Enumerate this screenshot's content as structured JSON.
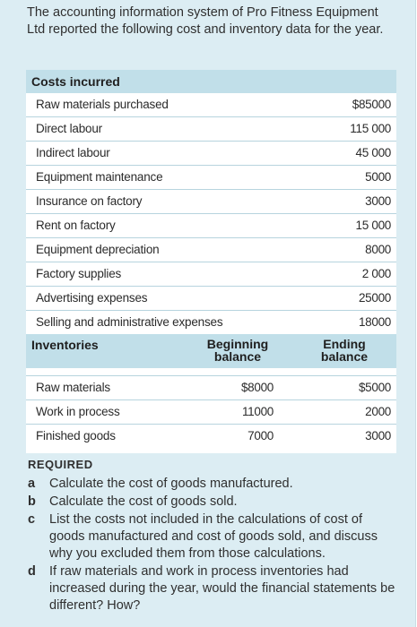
{
  "intro": "The accounting information system of Pro Fitness Equipment Ltd reported the following cost and inventory data for the year.",
  "costs": {
    "header": "Costs incurred",
    "rows": [
      {
        "label": "Raw materials purchased",
        "value": "$85000"
      },
      {
        "label": "Direct labour",
        "value": "115 000"
      },
      {
        "label": "Indirect labour",
        "value": "45 000"
      },
      {
        "label": "Equipment maintenance",
        "value": "5000"
      },
      {
        "label": "Insurance on factory",
        "value": "3000"
      },
      {
        "label": "Rent on factory",
        "value": "15 000"
      },
      {
        "label": "Equipment depreciation",
        "value": "8000"
      },
      {
        "label": "Factory supplies",
        "value": "2 000"
      },
      {
        "label": "Advertising expenses",
        "value": "25000"
      },
      {
        "label": "Selling and administrative expenses",
        "value": "18000"
      }
    ]
  },
  "inventories": {
    "header": "Inventories",
    "col_beginning": "Beginning balance",
    "col_ending": "Ending balance",
    "rows": [
      {
        "label": "Raw materials",
        "beginning": "$8000",
        "ending": "$5000"
      },
      {
        "label": "Work in process",
        "beginning": "11000",
        "ending": "2000"
      },
      {
        "label": "Finished goods",
        "beginning": "7000",
        "ending": "3000"
      }
    ]
  },
  "required": {
    "title": "REQUIRED",
    "items": [
      {
        "letter": "a",
        "text": "Calculate the cost of goods manufactured."
      },
      {
        "letter": "b",
        "text": "Calculate the cost of goods sold."
      },
      {
        "letter": "c",
        "text": "List the costs not included in the calculations of cost of goods manufactured and cost of goods sold, and discuss why you excluded them from those calculations."
      },
      {
        "letter": "d",
        "text": "If raw materials and work in process inventories had increased during the year, would the financial statements be different? How?"
      }
    ]
  }
}
